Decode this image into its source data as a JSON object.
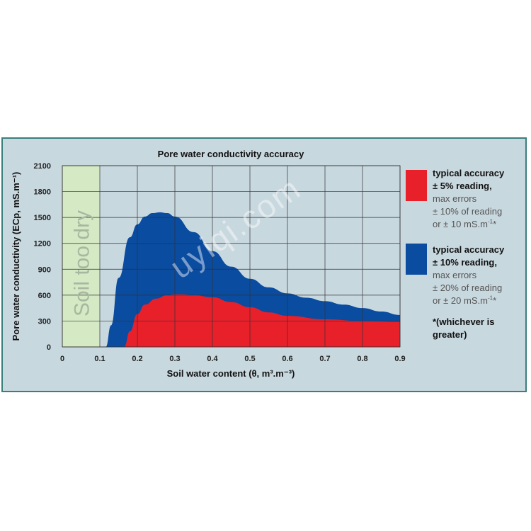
{
  "chart_data": {
    "type": "area",
    "title": "Pore water conductivity accuracy",
    "xlabel": "Soil water content (θ, m³.m⁻³)",
    "ylabel": "Pore water conductivity (ECp, mS.m⁻¹)",
    "xlim": [
      0,
      0.9
    ],
    "ylim": [
      0,
      2100
    ],
    "x_ticks": [
      "0",
      "0.1",
      "0.2",
      "0.3",
      "0.4",
      "0.5",
      "0.6",
      "0.7",
      "0.8",
      "0.9"
    ],
    "y_ticks": [
      "0",
      "300",
      "600",
      "900",
      "1200",
      "1500",
      "1800",
      "2100"
    ],
    "grid": true,
    "shaded_region": {
      "label": "Soil too dry",
      "x_range": [
        0,
        0.1
      ],
      "color": "#d4e9c4"
    },
    "series": [
      {
        "name": "typical accuracy ± 10% reading",
        "color": "#0a4ca0",
        "x": [
          0.116,
          0.13,
          0.15,
          0.18,
          0.2,
          0.22,
          0.24,
          0.26,
          0.28,
          0.3,
          0.35,
          0.4,
          0.45,
          0.5,
          0.55,
          0.6,
          0.65,
          0.7,
          0.75,
          0.8,
          0.85,
          0.9
        ],
        "values": [
          0,
          250,
          800,
          1270,
          1420,
          1510,
          1550,
          1560,
          1550,
          1510,
          1330,
          1110,
          930,
          790,
          690,
          620,
          570,
          530,
          490,
          450,
          410,
          370
        ]
      },
      {
        "name": "typical accuracy ± 5% reading",
        "color": "#e8202a",
        "x": [
          0.165,
          0.18,
          0.2,
          0.22,
          0.25,
          0.28,
          0.3,
          0.32,
          0.35,
          0.4,
          0.45,
          0.5,
          0.55,
          0.6,
          0.7,
          0.8,
          0.9
        ],
        "values": [
          0,
          180,
          380,
          490,
          560,
          600,
          610,
          610,
          600,
          575,
          520,
          460,
          400,
          360,
          320,
          300,
          290
        ]
      }
    ]
  },
  "legend": {
    "items": [
      {
        "color": "#e8202a",
        "line1": "typical accuracy",
        "line2": "± 5% reading,",
        "line3": "max errors",
        "line4": "± 10% of reading",
        "line5": "or ± 10 mS.m",
        "line5_sup": "-1",
        "line5_suffix": "*"
      },
      {
        "color": "#0a4ca0",
        "line1": "typical accuracy",
        "line2": "± 10% reading,",
        "line3": "max errors",
        "line4": "± 20% of reading",
        "line5": "or ± 20 mS.m",
        "line5_sup": "-1",
        "line5_suffix": "*"
      }
    ],
    "note_line1": "*(whichever is",
    "note_line2": "greater)"
  },
  "watermark": "uyiqi.com"
}
